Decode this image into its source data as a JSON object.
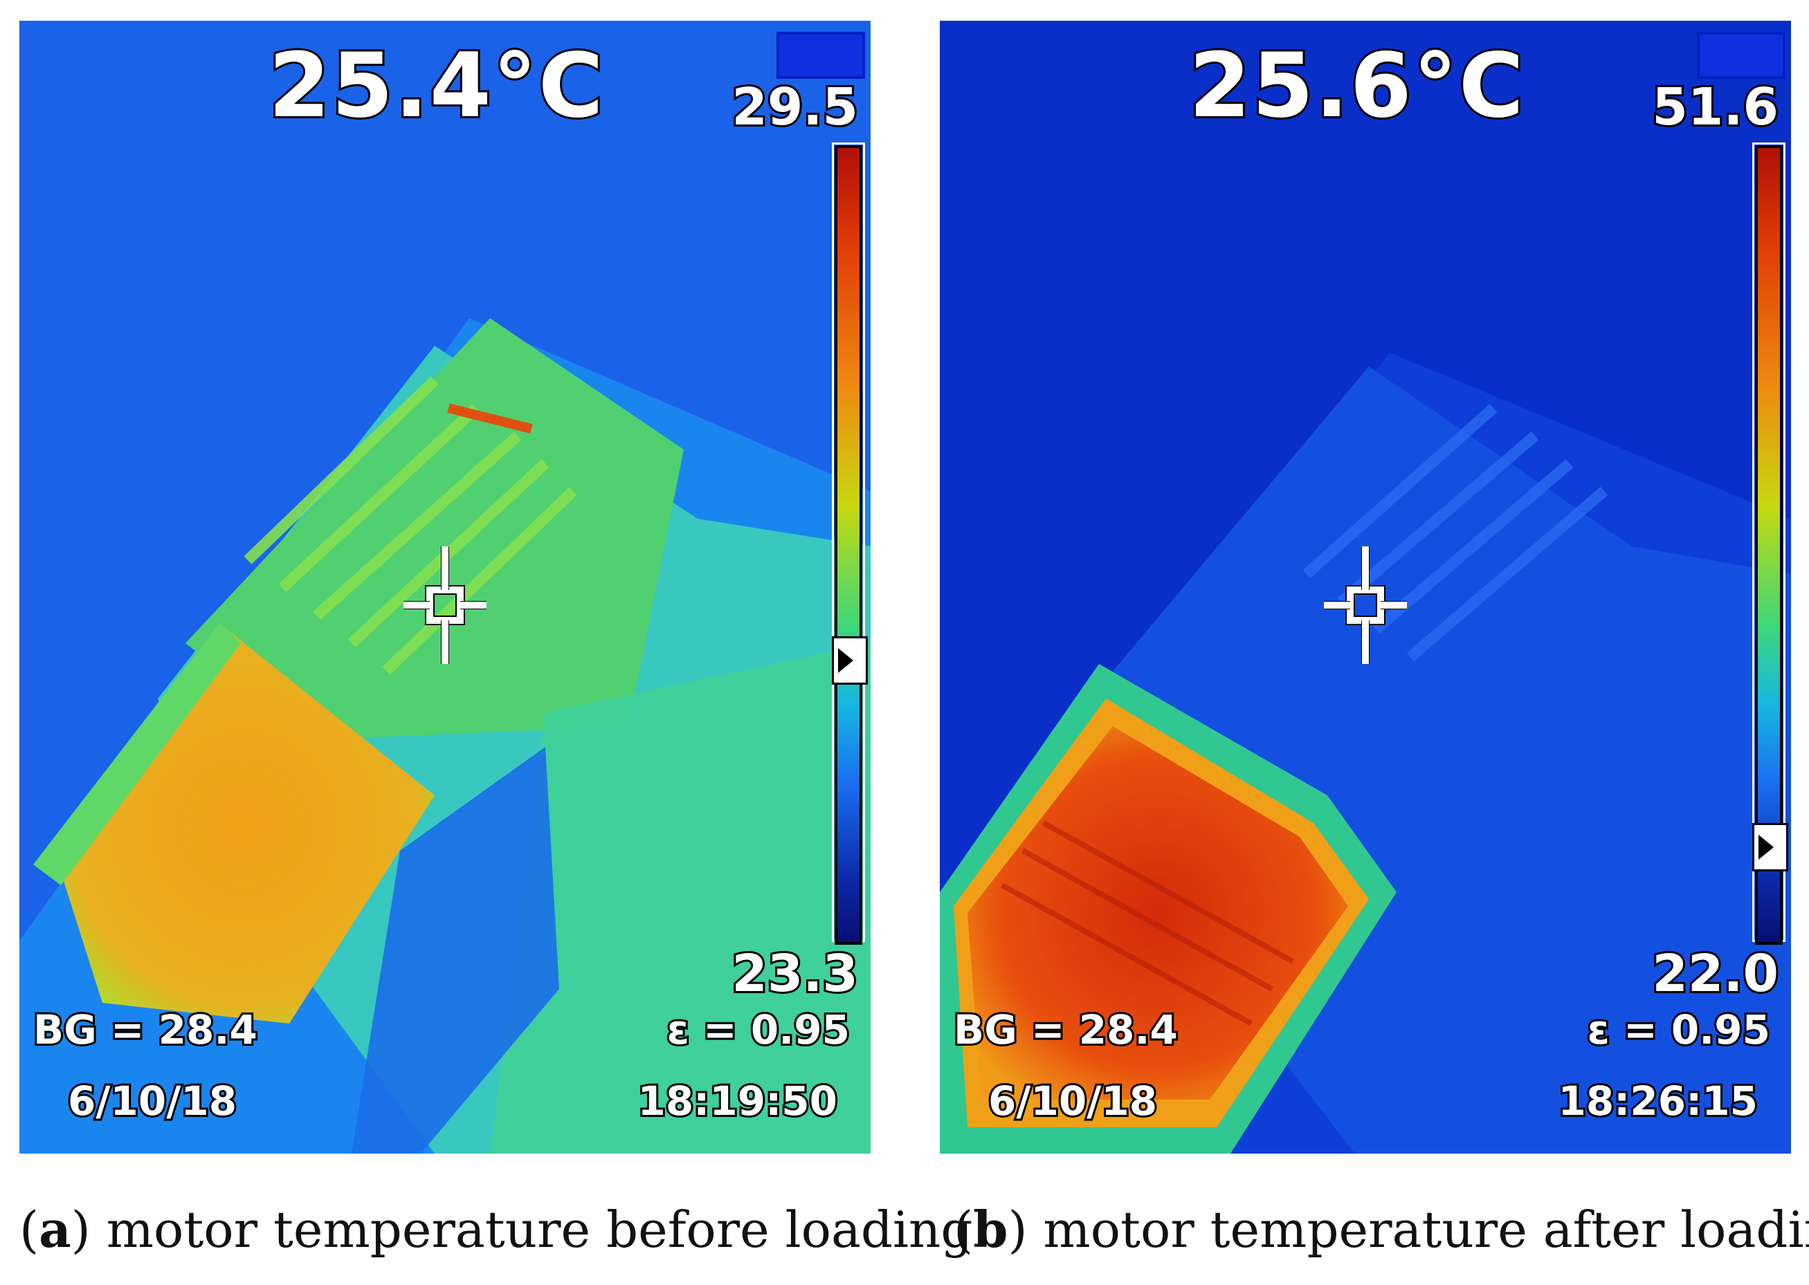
{
  "panels": [
    {
      "main_temp": "25.4°C",
      "scale_max": "29.5",
      "scale_min": "23.3",
      "bg": "BG = 28.4",
      "emissivity": "ε = 0.95",
      "date": "6/10/18",
      "time": "18:19:50",
      "caption_letter": "a",
      "caption_text": " motor temperature before loading"
    },
    {
      "main_temp": "25.6°C",
      "scale_max": "51.6",
      "scale_min": "22.0",
      "bg": "BG = 28.4",
      "emissivity": "ε = 0.95",
      "date": "6/10/18",
      "time": "18:26:15",
      "caption_letter": "b",
      "caption_text": " motor temperature after loading"
    }
  ],
  "colors": {
    "background_a": "#1a64e8",
    "background_b": "#0a2fc8",
    "hot_a": "#f0a018",
    "hot_b": "#e03c0c"
  }
}
